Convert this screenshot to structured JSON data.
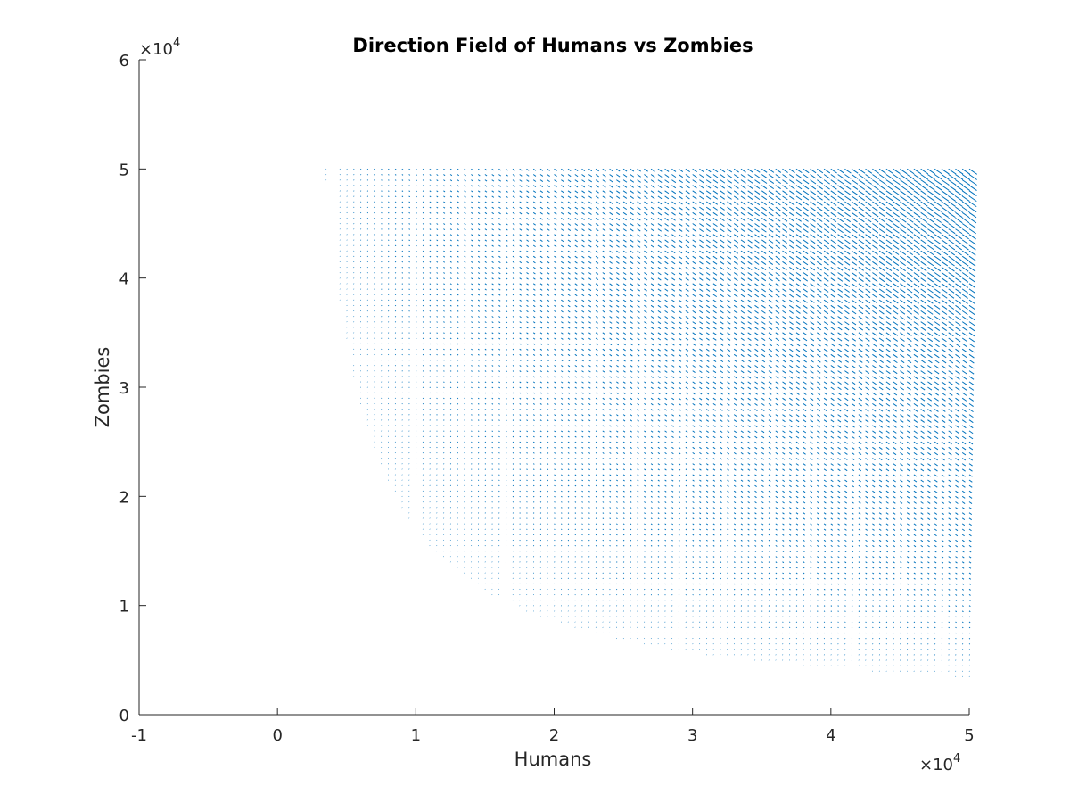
{
  "chart_data": {
    "type": "quiver",
    "title": "Direction Field of Humans vs Zombies",
    "xlabel": "Humans",
    "ylabel": "Zombies",
    "xlim": [
      -10000,
      50000
    ],
    "ylim": [
      0,
      60000
    ],
    "x_ticks": [
      -10000,
      0,
      10000,
      20000,
      30000,
      40000,
      50000
    ],
    "y_ticks": [
      0,
      10000,
      20000,
      30000,
      40000,
      50000,
      60000
    ],
    "x_tick_labels": [
      "-1",
      "0",
      "1",
      "2",
      "3",
      "4",
      "5"
    ],
    "y_tick_labels": [
      "0",
      "1",
      "2",
      "3",
      "4",
      "5",
      "6"
    ],
    "x_exponent": {
      "base": "×10",
      "power": "4"
    },
    "y_exponent": {
      "base": "×10",
      "power": "4"
    },
    "field_domain": {
      "x": [
        0,
        50000
      ],
      "y": [
        0,
        50000
      ]
    },
    "field_spacing": 500,
    "arrow_color": "#0072BD",
    "grid": false,
    "box": false
  }
}
